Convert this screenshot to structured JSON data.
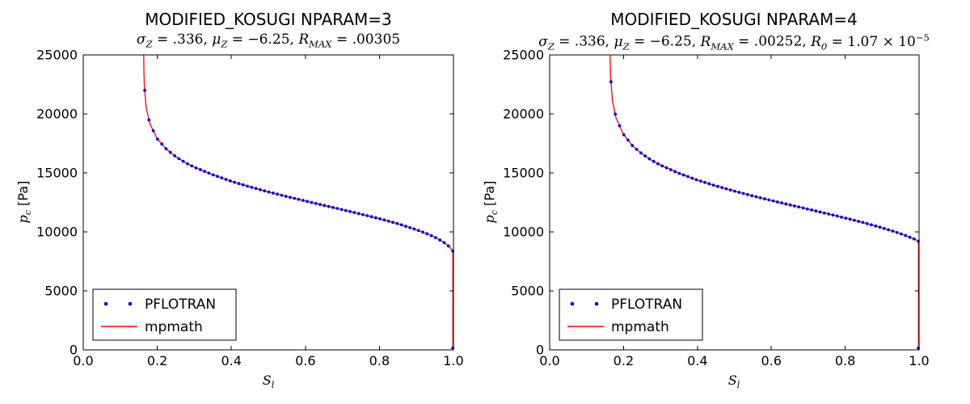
{
  "figure": {
    "background": "#ffffff",
    "text_color": "#000000",
    "axis_color": "#000000"
  },
  "colors": {
    "pflotran_marker": "#0000ff",
    "mpmath_line": "#ff0000"
  },
  "chart_data": [
    {
      "type": "line",
      "title": "MODIFIED_KOSUGI NPARAM=3",
      "subtitle_text": "σZ = .336, μZ = −6.25, RMAX = .00305",
      "subtitle_parts": [
        {
          "t": "σ",
          "sub": "Z",
          "it": true
        },
        {
          "t": " = .336,  ",
          "it": false
        },
        {
          "t": "μ",
          "sub": "Z",
          "it": true
        },
        {
          "t": " = −6.25,  ",
          "it": false
        },
        {
          "t": "R",
          "sub": "MAX",
          "it": true
        },
        {
          "t": " = .00305",
          "it": false
        }
      ],
      "params": {
        "sigma_Z": 0.336,
        "mu_Z": -6.25,
        "R_MAX": 0.00305
      },
      "xlabel_parts": [
        {
          "t": "S",
          "sub": "l",
          "it": true
        }
      ],
      "ylabel_parts": [
        {
          "t": "p",
          "sub": "c",
          "it": true
        },
        {
          "t": " [Pa]",
          "it": false,
          "sans": true
        }
      ],
      "xlim": [
        0.0,
        1.0
      ],
      "ylim": [
        0,
        25000
      ],
      "xticks": [
        "0.0",
        "0.2",
        "0.4",
        "0.6",
        "0.8",
        "1.0"
      ],
      "yticks": [
        "0",
        "5000",
        "10000",
        "15000",
        "20000",
        "25000"
      ],
      "grid": false,
      "legend_position": "lower-left",
      "legend": [
        {
          "label": "PFLOTRAN",
          "marker": "dots",
          "color": "#0000ff"
        },
        {
          "label": "mpmath",
          "marker": "line",
          "color": "#ff0000"
        }
      ],
      "line_series": {
        "name": "mpmath",
        "color": "#ff0000",
        "points_s_pc": [
          [
            0.1633,
            25000
          ],
          [
            0.1639,
            23500
          ],
          [
            0.165,
            22361
          ],
          [
            0.17,
            20541
          ],
          [
            0.18,
            19155
          ],
          [
            0.2,
            17884
          ],
          [
            0.225,
            17000
          ],
          [
            0.25,
            16373
          ],
          [
            0.275,
            15884
          ],
          [
            0.3,
            15485
          ],
          [
            0.35,
            14846
          ],
          [
            0.4,
            14286
          ],
          [
            0.45,
            13818
          ],
          [
            0.5,
            13390
          ],
          [
            0.55,
            12997
          ],
          [
            0.6,
            12619
          ],
          [
            0.65,
            12248
          ],
          [
            0.7,
            11883
          ],
          [
            0.75,
            11506
          ],
          [
            0.8,
            11122
          ],
          [
            0.85,
            10691
          ],
          [
            0.9,
            10183
          ],
          [
            0.925,
            9891
          ],
          [
            0.95,
            9544
          ],
          [
            0.97,
            9195
          ],
          [
            0.98,
            8974
          ],
          [
            0.99,
            8711
          ],
          [
            0.995,
            8547
          ],
          [
            0.9985,
            8350
          ],
          [
            0.9985,
            0
          ]
        ]
      },
      "dot_series": {
        "name": "PFLOTRAN",
        "color": "#0000ff",
        "s_start": 0.166,
        "s_end": 0.998,
        "count": 73,
        "extra_points_s_pc": [
          [
            0.998,
            150
          ]
        ]
      }
    },
    {
      "type": "line",
      "title": "MODIFIED_KOSUGI NPARAM=4",
      "subtitle_text": "σZ = .336, μZ = −6.25, RMAX = .00252, R0 = 1.07 × 10−5",
      "subtitle_parts": [
        {
          "t": "σ",
          "sub": "Z",
          "it": true
        },
        {
          "t": " = .336,  ",
          "it": false
        },
        {
          "t": "μ",
          "sub": "Z",
          "it": true
        },
        {
          "t": " = −6.25,  ",
          "it": false
        },
        {
          "t": "R",
          "sub": "MAX",
          "it": true
        },
        {
          "t": " = .00252,  ",
          "it": false
        },
        {
          "t": "R",
          "sub": "0",
          "it": true
        },
        {
          "t": " = 1.07 × 10",
          "sup": "−5",
          "it": false
        }
      ],
      "params": {
        "sigma_Z": 0.336,
        "mu_Z": -6.25,
        "R_MAX": 0.00252,
        "R_0": 1.07e-05
      },
      "xlabel_parts": [
        {
          "t": "S",
          "sub": "l",
          "it": true
        }
      ],
      "ylabel_parts": [
        {
          "t": "p",
          "sub": "c",
          "it": true
        },
        {
          "t": " [Pa]",
          "it": false,
          "sans": true
        }
      ],
      "xlim": [
        0.0,
        1.0
      ],
      "ylim": [
        0,
        25000
      ],
      "xticks": [
        "0.0",
        "0.2",
        "0.4",
        "0.6",
        "0.8",
        "1.0"
      ],
      "yticks": [
        "0",
        "5000",
        "10000",
        "15000",
        "20000",
        "25000"
      ],
      "grid": false,
      "legend_position": "lower-left",
      "legend": [
        {
          "label": "PFLOTRAN",
          "marker": "dots",
          "color": "#0000ff"
        },
        {
          "label": "mpmath",
          "marker": "line",
          "color": "#ff0000"
        }
      ],
      "line_series": {
        "name": "mpmath",
        "color": "#ff0000",
        "points_s_pc": [
          [
            0.1636,
            25000
          ],
          [
            0.1642,
            24000
          ],
          [
            0.165,
            23126
          ],
          [
            0.17,
            21122
          ],
          [
            0.18,
            19623
          ],
          [
            0.2,
            18260
          ],
          [
            0.225,
            17276
          ],
          [
            0.25,
            16612
          ],
          [
            0.275,
            16089
          ],
          [
            0.3,
            15660
          ],
          [
            0.35,
            14967
          ],
          [
            0.4,
            14390
          ],
          [
            0.45,
            13900
          ],
          [
            0.5,
            13459
          ],
          [
            0.55,
            13048
          ],
          [
            0.6,
            12665
          ],
          [
            0.65,
            12291
          ],
          [
            0.7,
            11925
          ],
          [
            0.75,
            11557
          ],
          [
            0.8,
            11177
          ],
          [
            0.85,
            10783
          ],
          [
            0.9,
            10346
          ],
          [
            0.925,
            10107
          ],
          [
            0.95,
            9848
          ],
          [
            0.97,
            9610
          ],
          [
            0.98,
            9484
          ],
          [
            0.99,
            9355
          ],
          [
            0.995,
            9273
          ],
          [
            0.9985,
            9200
          ],
          [
            0.9985,
            0
          ]
        ]
      },
      "dot_series": {
        "name": "PFLOTRAN",
        "color": "#0000ff",
        "s_start": 0.166,
        "s_end": 0.998,
        "count": 73,
        "extra_points_s_pc": [
          [
            0.998,
            150
          ]
        ]
      }
    }
  ]
}
